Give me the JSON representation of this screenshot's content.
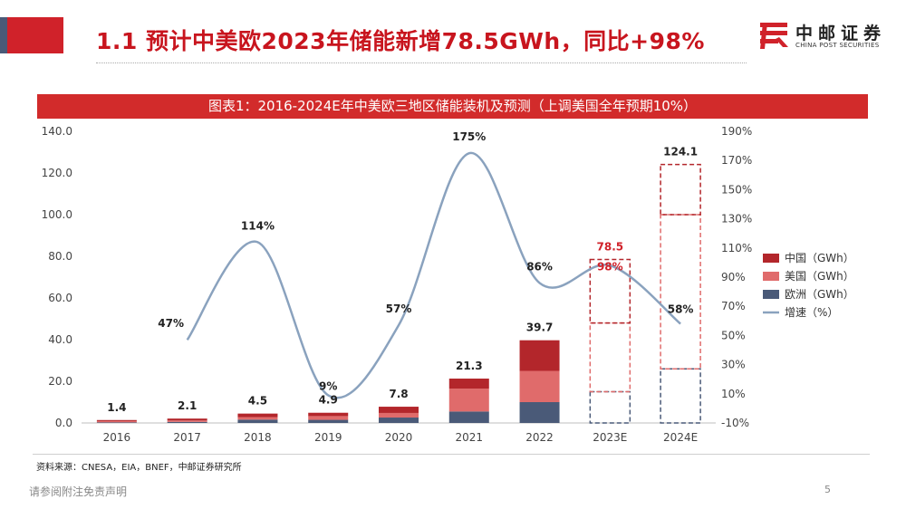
{
  "header": {
    "title": "1.1 预计中美欧2023年储能新增78.5GWh，同比+98%",
    "logo_cn": "中邮证券",
    "logo_en": "CHINA POST SECURITIES"
  },
  "chart_header": "图表1：2016-2024E年中美欧三地区储能装机及预测（上调美国全年预期10%）",
  "chart_data": {
    "type": "bar",
    "stacked": true,
    "categories": [
      "2016",
      "2017",
      "2018",
      "2019",
      "2020",
      "2021",
      "2022",
      "2023E",
      "2024E"
    ],
    "projected_categories": [
      "2023E",
      "2024E"
    ],
    "series": [
      {
        "name": "欧洲（GWh）",
        "axis": "left",
        "color": "#4a5a78",
        "values": [
          0.3,
          0.5,
          1.6,
          1.5,
          2.6,
          5.5,
          10.0,
          15.0,
          26.0
        ]
      },
      {
        "name": "美国（GWh）",
        "axis": "left",
        "color": "#e06b6b",
        "values": [
          0.6,
          0.7,
          1.2,
          1.8,
          2.2,
          11.0,
          15.0,
          33.0,
          74.0
        ]
      },
      {
        "name": "中国（GWh）",
        "axis": "left",
        "color": "#b3262b",
        "values": [
          0.5,
          0.9,
          1.7,
          1.6,
          3.0,
          4.8,
          14.7,
          30.5,
          24.1
        ]
      },
      {
        "name": "增速（%）",
        "axis": "right",
        "type": "line",
        "color": "#8aa2be",
        "values": [
          null,
          47,
          114,
          9,
          57,
          175,
          86,
          98,
          58
        ]
      }
    ],
    "totals": [
      1.4,
      2.1,
      4.5,
      4.9,
      7.8,
      21.3,
      39.7,
      78.5,
      124.1
    ],
    "total_labels": [
      "1.4",
      "2.1",
      "4.5",
      "4.9",
      "7.8",
      "21.3",
      "39.7",
      "78.5",
      "124.1"
    ],
    "growth_labels": [
      "",
      "47%",
      "114%",
      "9%",
      "57%",
      "175%",
      "86%",
      "98%",
      "58%"
    ],
    "highlight_index": 7,
    "highlight_color": "#d0222a",
    "y_left": {
      "min": 0,
      "max": 140,
      "step": 20,
      "ticks": [
        "0.0",
        "20.0",
        "40.0",
        "60.0",
        "80.0",
        "100.0",
        "120.0",
        "140.0"
      ]
    },
    "y_right": {
      "min": -10,
      "max": 190,
      "step": 20,
      "ticks": [
        "-10%",
        "10%",
        "30%",
        "50%",
        "70%",
        "90%",
        "110%",
        "130%",
        "150%",
        "170%",
        "190%"
      ]
    },
    "grid": false,
    "legend_position": "right",
    "legend_order": [
      2,
      1,
      0,
      3
    ]
  },
  "source": "资料来源：CNESA，EIA，BNEF，中邮证券研究所",
  "footer": {
    "note": "请参阅附注免责声明",
    "page": "5"
  }
}
